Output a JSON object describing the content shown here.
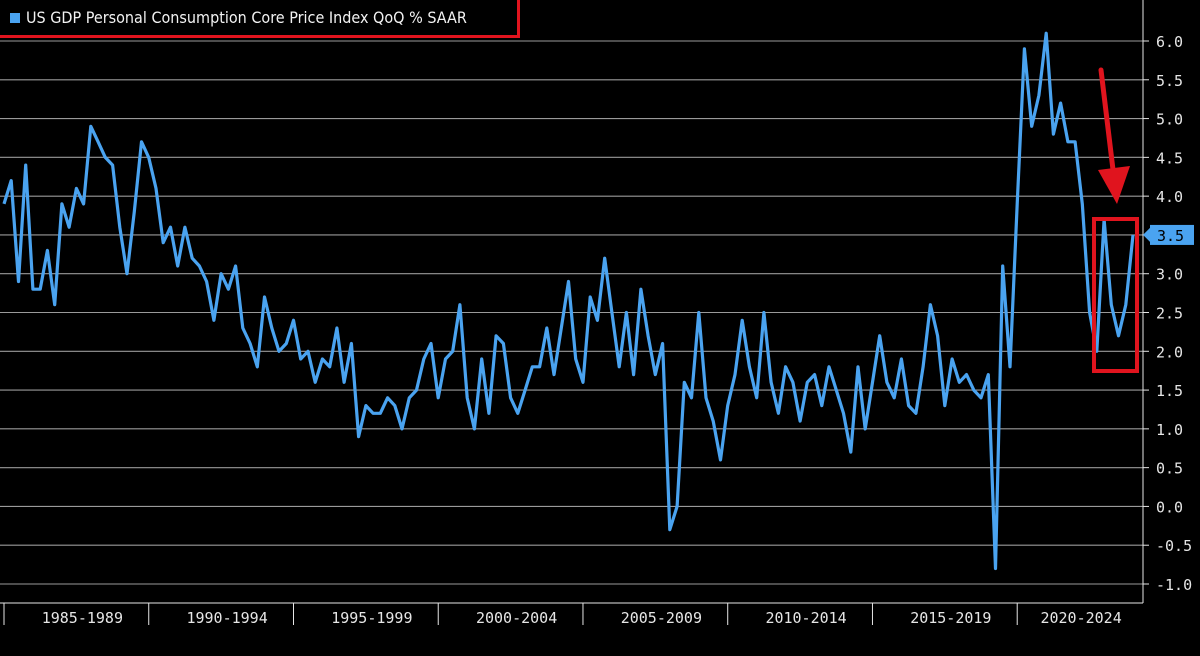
{
  "legend": {
    "label": "US GDP Personal Consumption Core Price Index QoQ % SAAR",
    "color": "#4aa3f0"
  },
  "colors": {
    "line": "#4aa3f0",
    "grid": "#9a9a9a",
    "axis_text": "#e6e6e6",
    "highlight": "#e0141e",
    "last_label_bg": "#4aa3f0"
  },
  "chart_data": {
    "type": "line",
    "title": "US GDP Personal Consumption Core Price Index QoQ % SAAR",
    "xlabel": "",
    "ylabel": "",
    "ylim": [
      -1.0,
      6.0
    ],
    "y_ticks": [
      "6.0",
      "5.5",
      "5.0",
      "4.5",
      "4.0",
      "3.5",
      "3.0",
      "2.5",
      "2.0",
      "1.5",
      "1.0",
      "0.5",
      "0.0",
      "-0.5",
      "-1.0"
    ],
    "x_tick_labels": [
      "1985-1989",
      "1990-1994",
      "1995-1999",
      "2000-2004",
      "2005-2009",
      "2010-2014",
      "2015-2019",
      "2020-2024"
    ],
    "grid": true,
    "y_axis_position": "right",
    "last_value_label": "3.5",
    "x_quarter_start": "1984-Q4",
    "series": [
      {
        "name": "US GDP Personal Consumption Core Price Index QoQ % SAAR",
        "values": [
          3.9,
          4.2,
          2.9,
          4.4,
          2.8,
          2.8,
          3.3,
          2.6,
          3.9,
          3.6,
          4.1,
          3.9,
          4.9,
          4.7,
          4.5,
          4.4,
          3.6,
          3.0,
          3.8,
          4.7,
          4.5,
          4.1,
          3.4,
          3.6,
          3.1,
          3.6,
          3.2,
          3.1,
          2.9,
          2.4,
          3.0,
          2.8,
          3.1,
          2.3,
          2.1,
          1.8,
          2.7,
          2.3,
          2.0,
          2.1,
          2.4,
          1.9,
          2.0,
          1.6,
          1.9,
          1.8,
          2.3,
          1.6,
          2.1,
          0.9,
          1.3,
          1.2,
          1.2,
          1.4,
          1.3,
          1.0,
          1.4,
          1.5,
          1.9,
          2.1,
          1.4,
          1.9,
          2.0,
          2.6,
          1.4,
          1.0,
          1.9,
          1.2,
          2.2,
          2.1,
          1.4,
          1.2,
          1.5,
          1.8,
          1.8,
          2.3,
          1.7,
          2.3,
          2.9,
          1.9,
          1.6,
          2.7,
          2.4,
          3.2,
          2.5,
          1.8,
          2.5,
          1.7,
          2.8,
          2.2,
          1.7,
          2.1,
          -0.3,
          0.0,
          1.6,
          1.4,
          2.5,
          1.4,
          1.1,
          0.6,
          1.3,
          1.7,
          2.4,
          1.8,
          1.4,
          2.5,
          1.6,
          1.2,
          1.8,
          1.6,
          1.1,
          1.6,
          1.7,
          1.3,
          1.8,
          1.5,
          1.2,
          0.7,
          1.8,
          1.0,
          1.6,
          2.2,
          1.6,
          1.4,
          1.9,
          1.3,
          1.2,
          1.8,
          2.6,
          2.2,
          1.3,
          1.9,
          1.6,
          1.7,
          1.5,
          1.4,
          1.7,
          -0.8,
          3.1,
          1.8,
          3.9,
          5.9,
          4.9,
          5.3,
          6.1,
          4.8,
          5.2,
          4.7,
          4.7,
          3.9,
          2.5,
          2.0,
          3.7,
          2.6,
          2.2,
          2.6,
          3.5
        ]
      }
    ]
  }
}
